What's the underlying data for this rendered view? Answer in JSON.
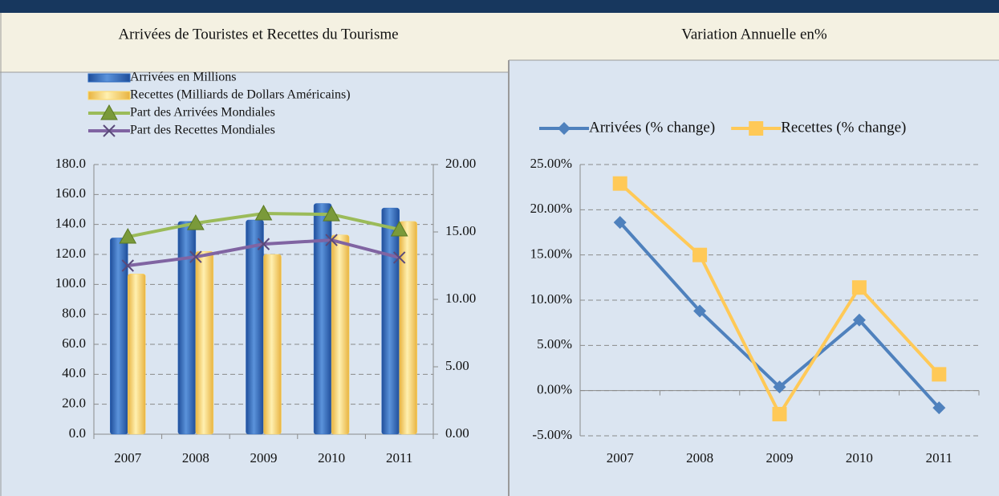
{
  "chart_data": [
    {
      "type": "bar",
      "title": "Arrivées de Touristes et Recettes du Tourisme",
      "categories": [
        "2007",
        "2008",
        "2009",
        "2010",
        "2011"
      ],
      "series": [
        {
          "name": "Arrivées en Millions",
          "type": "bar",
          "color": "#2f6bc0",
          "values": [
            131,
            142,
            143,
            154,
            151
          ]
        },
        {
          "name": "Recettes (Milliards de Dollars Américains)",
          "type": "bar",
          "color": "#ffd966",
          "values": [
            107,
            122,
            120,
            133,
            142
          ]
        },
        {
          "name": "Part des Arrivées Mondiales",
          "type": "line",
          "marker": "triangle",
          "axis": "y2",
          "color": "#9bbb59",
          "values": [
            14.64,
            15.65,
            16.37,
            16.3,
            15.18
          ]
        },
        {
          "name": "Part des Recettes Mondiales",
          "type": "line",
          "marker": "x",
          "axis": "y2",
          "color": "#8064a2",
          "values": [
            12.5,
            13.15,
            14.1,
            14.4,
            13.1
          ]
        }
      ],
      "ylim": [
        0,
        180
      ],
      "yticks": [
        {
          "value": 0,
          "label": "0.0"
        },
        {
          "value": 20,
          "label": "20.0"
        },
        {
          "value": 40,
          "label": "40.0"
        },
        {
          "value": 60,
          "label": "60.0"
        },
        {
          "value": 80,
          "label": "80.0"
        },
        {
          "value": 100,
          "label": "100.0"
        },
        {
          "value": 120,
          "label": "120.0"
        },
        {
          "value": 140,
          "label": "140.0"
        },
        {
          "value": 160,
          "label": "160.0"
        },
        {
          "value": 180,
          "label": "180.0"
        }
      ],
      "y2lim": [
        0,
        20
      ],
      "y2ticks": [
        {
          "value": 0,
          "label": "0.00"
        },
        {
          "value": 5,
          "label": "5.00"
        },
        {
          "value": 10,
          "label": "10.00"
        },
        {
          "value": 15,
          "label": "15.00"
        },
        {
          "value": 20,
          "label": "20.00"
        }
      ],
      "grid": true,
      "legend": "top"
    },
    {
      "type": "line",
      "title": "Variation Annuelle en%",
      "categories": [
        "2007",
        "2008",
        "2009",
        "2010",
        "2011"
      ],
      "series": [
        {
          "name": "Arrivées (% change)",
          "marker": "diamond",
          "color": "#4f81bd",
          "values": [
            18.6,
            8.8,
            0.4,
            7.8,
            -1.9
          ]
        },
        {
          "name": "Recettes (% change)",
          "marker": "square",
          "color": "#ffc957",
          "values": [
            22.9,
            15.0,
            -2.6,
            11.4,
            1.8
          ]
        }
      ],
      "ylim": [
        -5,
        25
      ],
      "yticks": [
        {
          "value": -5,
          "label": "-5.00%"
        },
        {
          "value": 0,
          "label": "0.00%"
        },
        {
          "value": 5,
          "label": "5.00%"
        },
        {
          "value": 10,
          "label": "10.00%"
        },
        {
          "value": 15,
          "label": "15.00%"
        },
        {
          "value": 20,
          "label": "20.00%"
        },
        {
          "value": 25,
          "label": "25.00%"
        }
      ],
      "grid": true,
      "legend": "top"
    }
  ]
}
